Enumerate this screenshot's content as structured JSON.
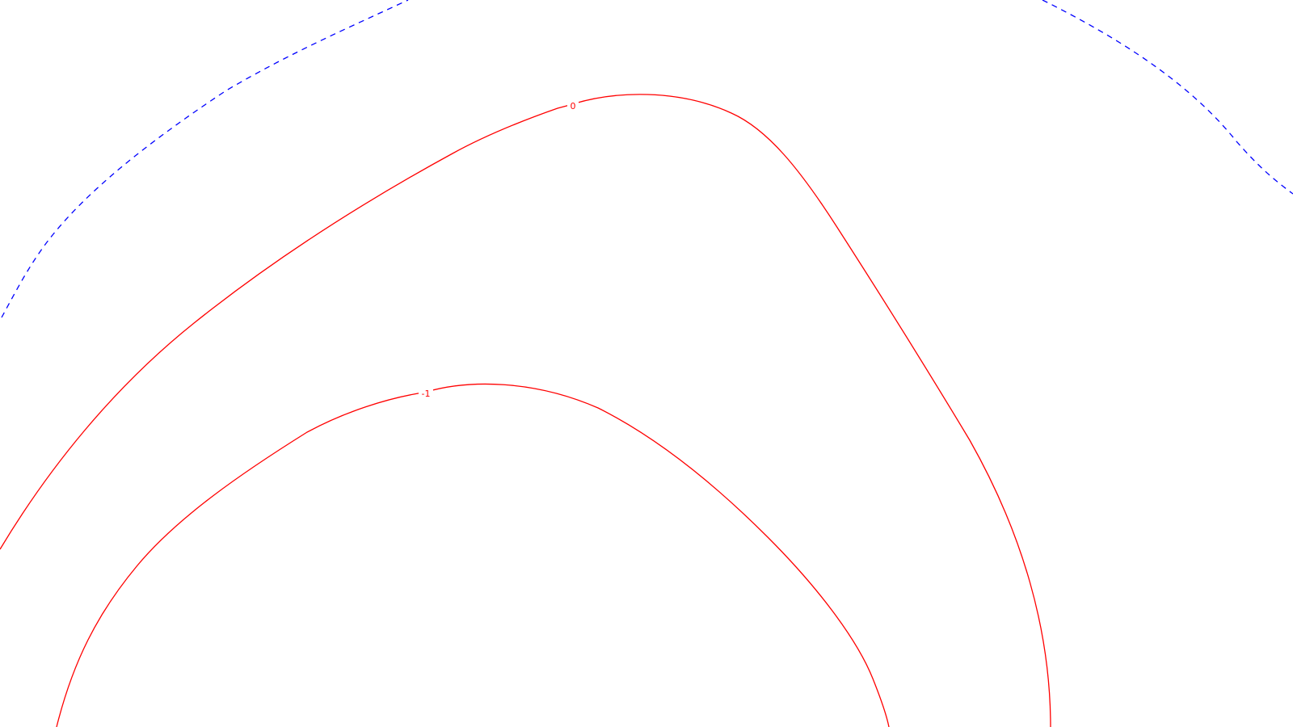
{
  "chart_data": {
    "type": "contour",
    "title": "",
    "xlabel": "",
    "ylabel": "",
    "grid": false,
    "legend": "none",
    "contours": [
      {
        "level": "0",
        "label": "0",
        "color": "#ff0000",
        "style": "solid"
      },
      {
        "level": "-1",
        "label": "-1",
        "color": "#ff0000",
        "style": "solid"
      },
      {
        "level": "",
        "label": "",
        "color": "#0000ff",
        "style": "dashed"
      }
    ]
  }
}
